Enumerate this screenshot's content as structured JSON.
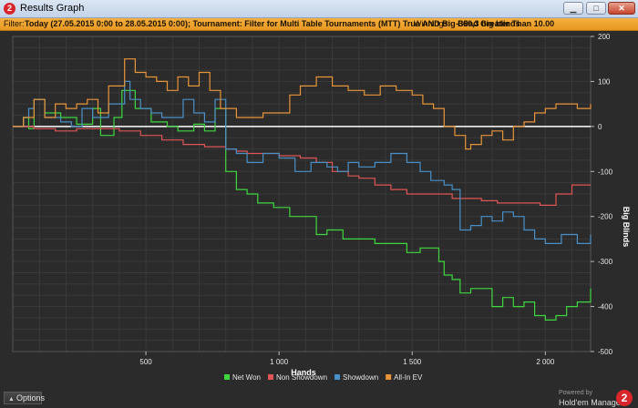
{
  "window": {
    "title": "Results Graph",
    "app_icon": "holdem-manager-icon",
    "controls": [
      "minimize-icon",
      "maximize-icon",
      "close-icon"
    ]
  },
  "filter": {
    "label": "Filter:",
    "text": "Today (27.05.2015 0:00 to 28.05.2015 0:00); Tournament: Filter for Multi Table Tournaments (MTT) True AND Big Blind Greater Than 10.00",
    "winnings_label": "Winnings:",
    "winnings_value": "-360,3 big blinds"
  },
  "chart_data": {
    "type": "line",
    "xlabel": "Hands",
    "ylabel": "Big Blinds",
    "xlim": [
      0,
      2170
    ],
    "ylim": [
      -500,
      200
    ],
    "x_ticks": [
      500,
      1000,
      1500,
      2000
    ],
    "x_tick_labels": [
      "500",
      "1 000",
      "1 500",
      "2 000"
    ],
    "y_ticks": [
      200,
      100,
      0,
      -100,
      -200,
      -300,
      -400,
      -500
    ],
    "grid": true,
    "legend_position": "bottom",
    "series": [
      {
        "name": "Net Won",
        "color": "#3fd73f",
        "x": [
          0,
          40,
          60,
          80,
          120,
          180,
          240,
          300,
          330,
          380,
          410,
          460,
          520,
          580,
          620,
          680,
          720,
          760,
          800,
          840,
          860,
          880,
          920,
          980,
          1040,
          1100,
          1140,
          1180,
          1240,
          1300,
          1360,
          1420,
          1480,
          1530,
          1570,
          1600,
          1620,
          1650,
          1680,
          1720,
          1760,
          1800,
          1840,
          1880,
          1920,
          1960,
          2000,
          2040,
          2080,
          2120,
          2170
        ],
        "y": [
          0,
          20,
          -5,
          60,
          30,
          20,
          5,
          40,
          -20,
          20,
          80,
          40,
          10,
          0,
          -10,
          5,
          -10,
          40,
          -100,
          -140,
          -140,
          -150,
          -170,
          -180,
          -200,
          -200,
          -240,
          -230,
          -250,
          -250,
          -260,
          -260,
          -280,
          -270,
          -270,
          -300,
          -330,
          -340,
          -370,
          -360,
          -360,
          -400,
          -380,
          -400,
          -390,
          -420,
          -430,
          -420,
          -400,
          -390,
          -360
        ]
      },
      {
        "name": "Non Showdown",
        "color": "#e05555",
        "x": [
          0,
          80,
          160,
          240,
          320,
          400,
          480,
          560,
          640,
          720,
          800,
          840,
          880,
          920,
          1000,
          1080,
          1140,
          1200,
          1260,
          1300,
          1360,
          1420,
          1480,
          1540,
          1600,
          1650,
          1700,
          1760,
          1820,
          1880,
          1940,
          1980,
          2040,
          2100,
          2170
        ],
        "y": [
          0,
          -5,
          -10,
          -5,
          -5,
          -10,
          -20,
          -30,
          -40,
          -45,
          -50,
          -55,
          -60,
          -60,
          -65,
          -70,
          -80,
          -100,
          -110,
          -115,
          -130,
          -140,
          -150,
          -150,
          -150,
          -160,
          -160,
          -165,
          -170,
          -170,
          -170,
          -175,
          -150,
          -130,
          -130
        ]
      },
      {
        "name": "Showdown",
        "color": "#4a90c8",
        "x": [
          0,
          40,
          60,
          80,
          120,
          180,
          220,
          260,
          300,
          360,
          420,
          440,
          480,
          520,
          560,
          600,
          640,
          680,
          720,
          760,
          800,
          840,
          880,
          940,
          1000,
          1060,
          1120,
          1180,
          1220,
          1260,
          1300,
          1360,
          1420,
          1480,
          1530,
          1570,
          1620,
          1650,
          1680,
          1720,
          1760,
          1800,
          1840,
          1880,
          1920,
          1960,
          2000,
          2060,
          2120,
          2170
        ],
        "y": [
          0,
          20,
          40,
          60,
          20,
          10,
          0,
          40,
          20,
          50,
          100,
          60,
          40,
          30,
          20,
          20,
          60,
          30,
          10,
          60,
          -50,
          -60,
          -80,
          -60,
          -70,
          -100,
          -80,
          -90,
          -100,
          -80,
          -90,
          -80,
          -60,
          -80,
          -100,
          -120,
          -130,
          -140,
          -230,
          -220,
          -200,
          -210,
          -190,
          -200,
          -230,
          -250,
          -260,
          -240,
          -260,
          -240
        ]
      },
      {
        "name": "All-In EV",
        "color": "#e8953a",
        "x": [
          0,
          40,
          80,
          120,
          160,
          200,
          240,
          280,
          320,
          360,
          420,
          460,
          500,
          540,
          580,
          620,
          660,
          700,
          740,
          780,
          800,
          840,
          880,
          940,
          1000,
          1040,
          1080,
          1140,
          1200,
          1260,
          1320,
          1380,
          1440,
          1500,
          1540,
          1580,
          1620,
          1660,
          1700,
          1720,
          1760,
          1800,
          1840,
          1880,
          1920,
          1960,
          2000,
          2040,
          2080,
          2120,
          2170
        ],
        "y": [
          0,
          20,
          60,
          20,
          50,
          40,
          50,
          60,
          30,
          90,
          150,
          120,
          110,
          100,
          80,
          110,
          90,
          120,
          80,
          40,
          40,
          20,
          20,
          30,
          30,
          70,
          90,
          110,
          90,
          80,
          70,
          90,
          80,
          70,
          50,
          40,
          0,
          -20,
          -50,
          -40,
          -20,
          -10,
          -30,
          0,
          10,
          30,
          40,
          50,
          50,
          40,
          50
        ]
      }
    ]
  },
  "bottom": {
    "options_label": "Options",
    "powered_label": "Powered by",
    "brand_label": "Hold'em Manager",
    "logo_text": "2"
  }
}
